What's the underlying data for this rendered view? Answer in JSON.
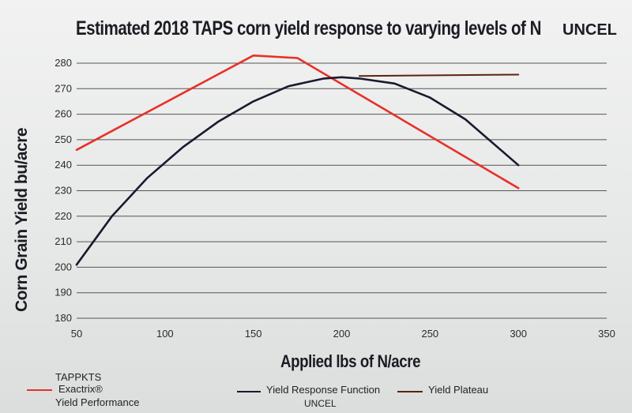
{
  "chart_data": {
    "type": "line",
    "title": "Estimated 2018 TAPS corn yield response to varying levels of N",
    "title_suffix": "UNCEL",
    "xlabel": "Applied lbs of N/acre",
    "ylabel": "Corn Grain Yield bu/acre",
    "xlim": [
      50,
      350
    ],
    "ylim": [
      180,
      280
    ],
    "x_ticks": [
      "50",
      "100",
      "150",
      "200",
      "250",
      "300",
      "350"
    ],
    "y_ticks": [
      "180",
      "190",
      "200",
      "210",
      "220",
      "230",
      "240",
      "250",
      "260",
      "270",
      "280"
    ],
    "grid": "horizontal",
    "legend_position": "bottom",
    "series": [
      {
        "name": "Exactrix® Yield Performance",
        "color": "#e8302a",
        "x": [
          50,
          150,
          175,
          300
        ],
        "y": [
          246,
          283,
          282,
          231
        ]
      },
      {
        "name": "Yield Response Function",
        "color": "#1a1a2e",
        "x": [
          50,
          70,
          90,
          110,
          130,
          150,
          170,
          190,
          200,
          210,
          230,
          250,
          270,
          290,
          300
        ],
        "y": [
          201,
          220,
          235,
          247,
          257,
          265,
          271,
          274,
          274.5,
          274,
          272,
          266.5,
          258,
          246,
          240
        ]
      },
      {
        "name": "Yield Plateau",
        "color": "#5a2410",
        "x": [
          210,
          300
        ],
        "y": [
          275,
          275.5
        ]
      }
    ],
    "legend": {
      "group_label": "TAPPKTS",
      "exactrix_line1": "Exactrix®",
      "exactrix_line2": "Yield Performance",
      "response_label": "Yield Response Function",
      "response_sublabel": "UNCEL",
      "plateau_label": "Yield Plateau"
    }
  }
}
